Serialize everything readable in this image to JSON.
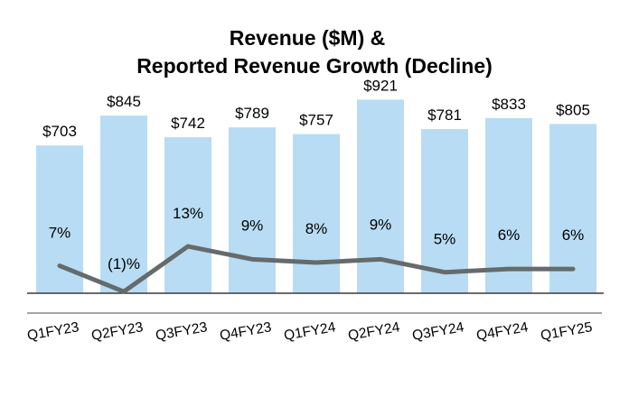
{
  "chart_data": {
    "type": "bar",
    "title": "Revenue ($M) &",
    "subtitle": "Reported Revenue Growth (Decline)",
    "categories": [
      "Q1FY23",
      "Q2FY23",
      "Q3FY23",
      "Q4FY23",
      "Q1FY24",
      "Q2FY24",
      "Q3FY24",
      "Q4FY24",
      "Q1FY25"
    ],
    "series": [
      {
        "name": "Revenue ($M)",
        "type": "bar",
        "values": [
          703,
          845,
          742,
          789,
          757,
          921,
          781,
          833,
          805
        ],
        "labels": [
          "$703",
          "$845",
          "$742",
          "$789",
          "$757",
          "$921",
          "$781",
          "$833",
          "$805"
        ],
        "color": "#b8dcf3"
      },
      {
        "name": "Reported Revenue Growth (Decline)",
        "type": "line",
        "values": [
          7,
          -1,
          13,
          9,
          8,
          9,
          5,
          6,
          6
        ],
        "labels": [
          "7%",
          "(1)%",
          "13%",
          "9%",
          "8%",
          "9%",
          "5%",
          "6%",
          "6%"
        ],
        "color": "#656b6b"
      }
    ],
    "ylim": [
      0,
      1000
    ],
    "y2lim": [
      -1.5,
      25
    ],
    "xlabel": "",
    "ylabel": "",
    "grid": false,
    "legend": "none"
  }
}
